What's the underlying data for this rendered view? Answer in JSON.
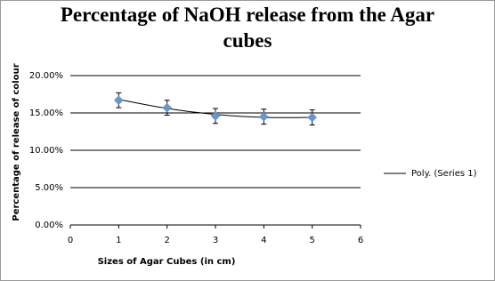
{
  "chart_data": {
    "type": "scatter",
    "title": "Percentage of NaOH release from the Agar cubes",
    "x_label": "Sizes of Agar Cubes (in cm)",
    "y_label": "Percentage of release of colour",
    "x": [
      1,
      2,
      3,
      4,
      5
    ],
    "values": [
      16.7,
      15.7,
      14.6,
      14.5,
      14.4
    ],
    "errors": [
      1,
      1,
      1,
      1,
      1
    ],
    "color": "#6a97c9",
    "trendline": {
      "name": "Poly. (Series 1)",
      "color": "#000000",
      "values": [
        16.8,
        15.6,
        14.8,
        14.4,
        14.4
      ]
    },
    "xlim": [
      0,
      6
    ],
    "xticks": [
      0,
      1,
      2,
      3,
      4,
      5,
      6
    ],
    "ylim": [
      0,
      20
    ],
    "yticks": [
      {
        "value": 0,
        "label": "0.00%"
      },
      {
        "value": 5,
        "label": "5.00%"
      },
      {
        "value": 10,
        "label": "10.00%"
      },
      {
        "value": 15,
        "label": "15.00%"
      },
      {
        "value": 20,
        "label": "20.00%"
      }
    ],
    "grid": true,
    "legend": "right"
  }
}
